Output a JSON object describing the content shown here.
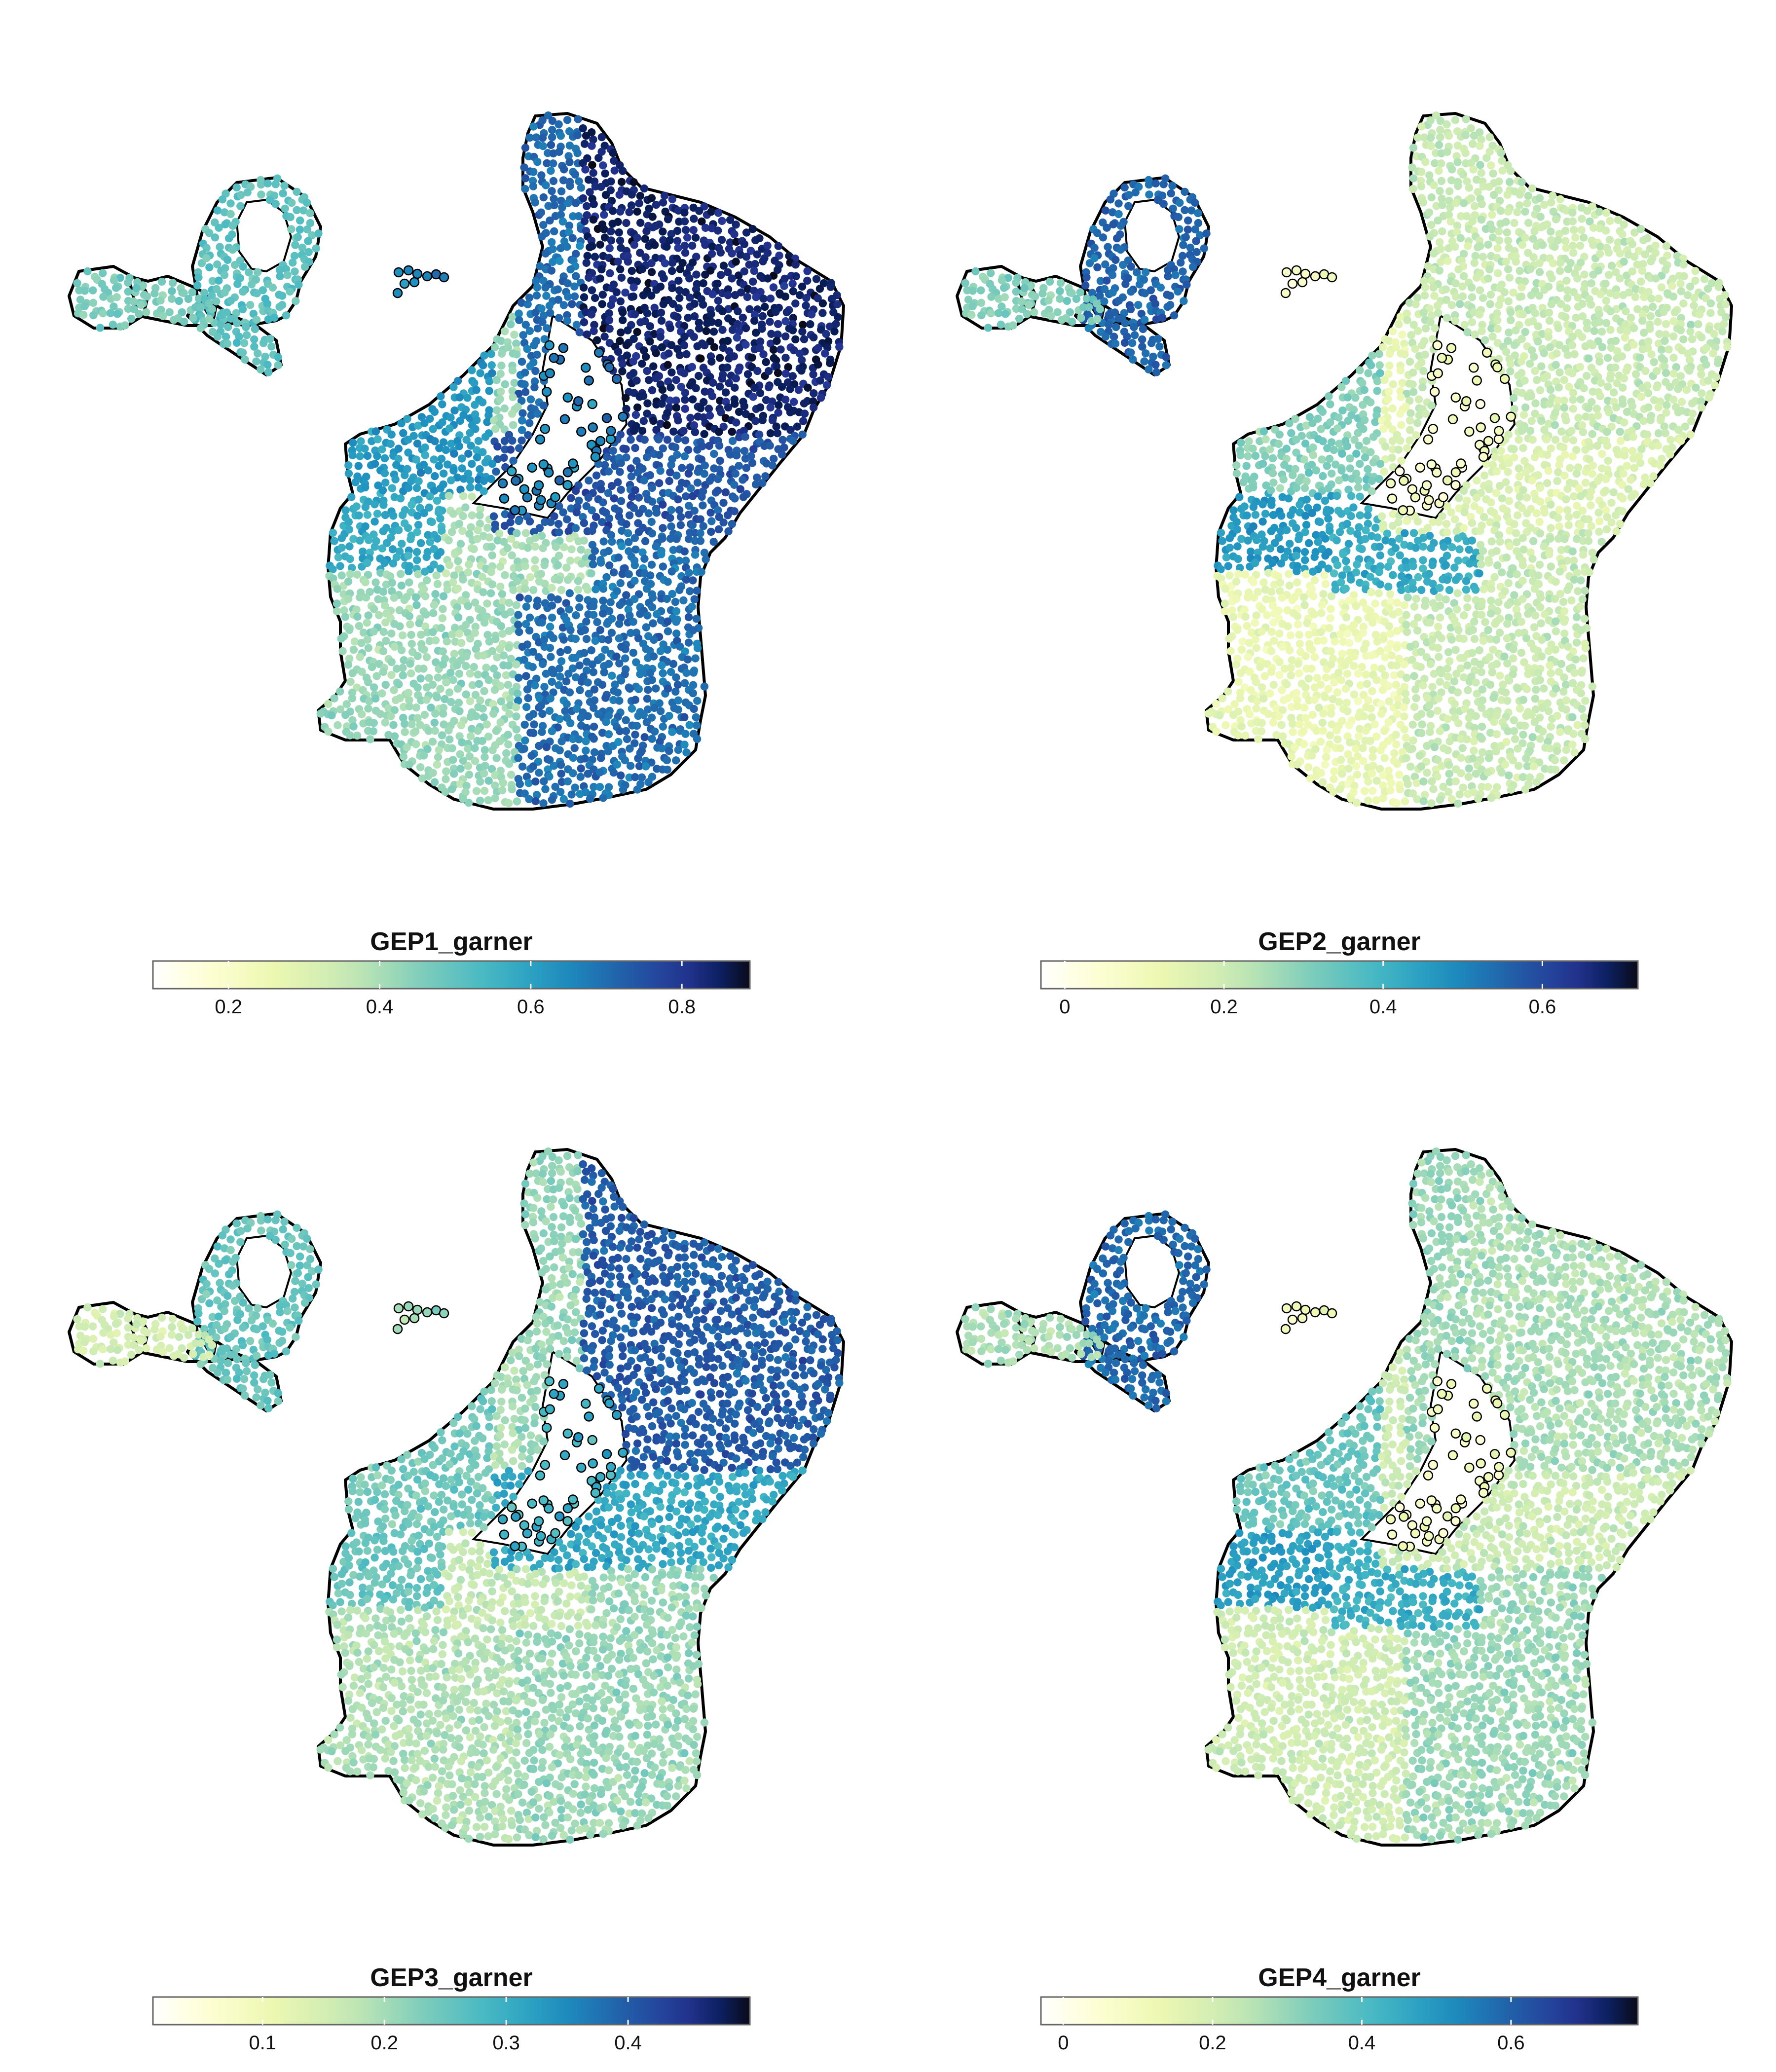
{
  "chart_data": [
    {
      "type": "scatter",
      "title": "GEP1_garner",
      "colorscale": "YlGnBu",
      "legend_position": "bottom",
      "range": [
        0.1,
        0.89
      ],
      "ticks": [
        0.2,
        0.4,
        0.6,
        0.8
      ],
      "tick_labels": [
        "0.2",
        "0.4",
        "0.6",
        "0.8"
      ],
      "regions": [
        {
          "region": "upper-right lobe",
          "value": 0.84
        },
        {
          "region": "central-right",
          "value": 0.74
        },
        {
          "region": "lower-left",
          "value": 0.42
        },
        {
          "region": "lower-right",
          "value": 0.7
        },
        {
          "region": "left-arm",
          "value": 0.58
        },
        {
          "region": "upper-left",
          "value": 0.62
        },
        {
          "region": "cavity-points",
          "value": 0.66
        },
        {
          "region": "band",
          "value": 0.4
        },
        {
          "region": "small-cluster",
          "value": 0.46
        },
        {
          "region": "small-ring",
          "value": 0.5
        },
        {
          "region": "small-dots",
          "value": 0.64
        }
      ]
    },
    {
      "type": "scatter",
      "title": "GEP2_garner",
      "colorscale": "YlGnBu",
      "legend_position": "bottom",
      "range": [
        -0.03,
        0.72
      ],
      "ticks": [
        0,
        0.2,
        0.4,
        0.6
      ],
      "tick_labels": [
        "0",
        "0.2",
        "0.4",
        "0.6"
      ],
      "regions": [
        {
          "region": "upper-right lobe",
          "value": 0.21
        },
        {
          "region": "central-right",
          "value": 0.17
        },
        {
          "region": "lower-left",
          "value": 0.13
        },
        {
          "region": "lower-right",
          "value": 0.21
        },
        {
          "region": "left-arm",
          "value": 0.46
        },
        {
          "region": "upper-left",
          "value": 0.3
        },
        {
          "region": "cavity-points",
          "value": 0.08
        },
        {
          "region": "band",
          "value": 0.42
        },
        {
          "region": "small-cluster",
          "value": 0.3
        },
        {
          "region": "small-ring",
          "value": 0.55
        },
        {
          "region": "small-dots",
          "value": 0.06
        }
      ]
    },
    {
      "type": "scatter",
      "title": "GEP3_garner",
      "colorscale": "YlGnBu",
      "legend_position": "bottom",
      "range": [
        0.01,
        0.5
      ],
      "ticks": [
        0.1,
        0.2,
        0.3,
        0.4
      ],
      "tick_labels": [
        "0.1",
        "0.2",
        "0.3",
        "0.4"
      ],
      "regions": [
        {
          "region": "upper-right lobe",
          "value": 0.4
        },
        {
          "region": "central-right",
          "value": 0.31
        },
        {
          "region": "lower-left",
          "value": 0.19
        },
        {
          "region": "lower-right",
          "value": 0.21
        },
        {
          "region": "left-arm",
          "value": 0.25
        },
        {
          "region": "upper-left",
          "value": 0.24
        },
        {
          "region": "cavity-points",
          "value": 0.3
        },
        {
          "region": "band",
          "value": 0.17
        },
        {
          "region": "small-cluster",
          "value": 0.15
        },
        {
          "region": "small-ring",
          "value": 0.25
        },
        {
          "region": "small-dots",
          "value": 0.2
        }
      ]
    },
    {
      "type": "scatter",
      "title": "GEP4_garner",
      "colorscale": "YlGnBu",
      "legend_position": "bottom",
      "range": [
        -0.03,
        0.77
      ],
      "ticks": [
        0,
        0.2,
        0.4,
        0.6
      ],
      "tick_labels": [
        "0",
        "0.2",
        "0.4",
        "0.6"
      ],
      "regions": [
        {
          "region": "upper-right lobe",
          "value": 0.27
        },
        {
          "region": "central-right",
          "value": 0.22
        },
        {
          "region": "lower-left",
          "value": 0.21
        },
        {
          "region": "lower-right",
          "value": 0.29
        },
        {
          "region": "left-arm",
          "value": 0.48
        },
        {
          "region": "upper-left",
          "value": 0.36
        },
        {
          "region": "cavity-points",
          "value": 0.1
        },
        {
          "region": "band",
          "value": 0.44
        },
        {
          "region": "small-cluster",
          "value": 0.27
        },
        {
          "region": "small-ring",
          "value": 0.58
        },
        {
          "region": "small-dots",
          "value": 0.1
        }
      ]
    }
  ]
}
